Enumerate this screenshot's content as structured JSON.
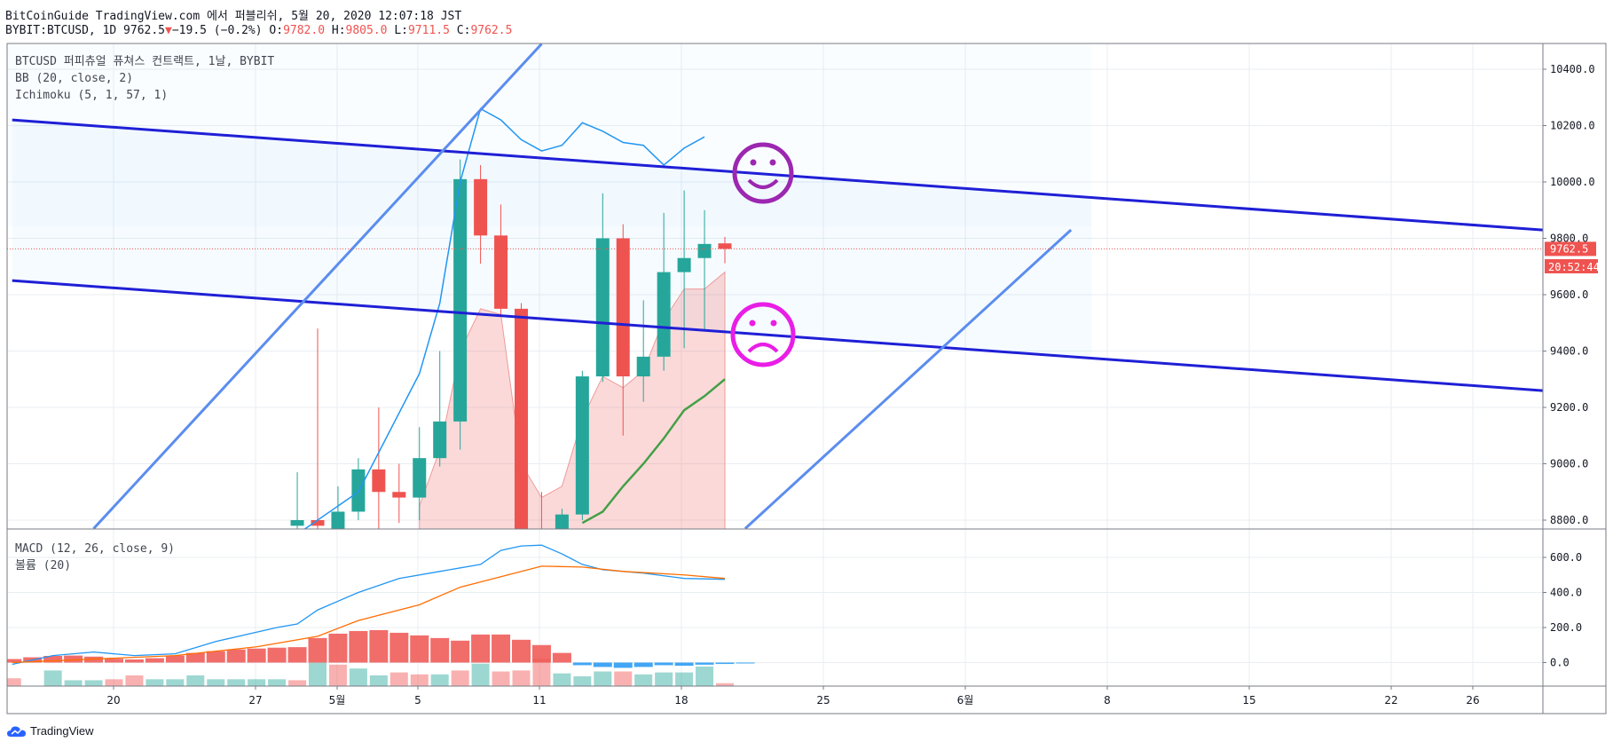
{
  "header": {
    "line1": "BitCoinGuide TradingView.com 에서 퍼블리쉬, 5월 20, 2020 12:07:18 JST",
    "symbol_prefix": "BYBIT:BTCUSD, 1D 9762.5",
    "change_arrow": "▼",
    "change": "−19.5 (−0.2%)",
    "o_label": "O:",
    "o_value": "9782.0",
    "h_label": "H:",
    "h_value": "9805.0",
    "l_label": "L:",
    "l_value": "9711.5",
    "c_label": "C:",
    "c_value": "9762.5"
  },
  "legend": {
    "main_title": "BTCUSD 퍼피츄얼 퓨쳐스 컨트랙트, 1날, BYBIT",
    "bb": "BB (20, close, 2)",
    "ichimoku": "Ichimoku (5, 1, 57, 1)",
    "macd": "MACD (12, 26, close, 9)",
    "volume": "볼륨 (20)"
  },
  "price_badge": "9762.5",
  "countdown_badge": "20:52:44",
  "footer_brand": "TradingView",
  "colors": {
    "up": "#26a69a",
    "down": "#ef5350",
    "channel": "#1f1fd6",
    "trend": "#5b8def",
    "bb": "#2196f3",
    "ichimoku": "#43a047",
    "macd": "#2196f3",
    "signal": "#ff6d00",
    "smile": "#9c27b0",
    "sad": "#e91ee6"
  },
  "chart_data": [
    {
      "type": "candlestick",
      "title": "BTCUSD 퍼피츄얼 퓨쳐스 컨트랙트, 1날, BYBIT",
      "x_ticks": [
        "20",
        "27",
        "5월",
        "5",
        "11",
        "18",
        "25",
        "6월",
        "8",
        "15",
        "22",
        "26"
      ],
      "y_ticks": [
        "10400.0",
        "10200.0",
        "10000.0",
        "9800.0",
        "9600.0",
        "9400.0",
        "9200.0",
        "9000.0",
        "8800.0"
      ],
      "ylim": [
        8770,
        10480
      ],
      "candles": [
        {
          "date": "2020-04-29",
          "o": 8780,
          "h": 8970,
          "l": 8760,
          "c": 8800
        },
        {
          "date": "2020-04-30",
          "o": 8800,
          "h": 9480,
          "l": 8760,
          "c": 8780
        },
        {
          "date": "2020-05-01",
          "o": 8770,
          "h": 8920,
          "l": 8760,
          "c": 8830
        },
        {
          "date": "2020-05-02",
          "o": 8830,
          "h": 9020,
          "l": 8800,
          "c": 8980
        },
        {
          "date": "2020-05-03",
          "o": 8980,
          "h": 9200,
          "l": 8770,
          "c": 8900
        },
        {
          "date": "2020-05-04",
          "o": 8900,
          "h": 9000,
          "l": 8790,
          "c": 8880
        },
        {
          "date": "2020-05-05",
          "o": 8880,
          "h": 9130,
          "l": 8800,
          "c": 9020
        },
        {
          "date": "2020-05-06",
          "o": 9020,
          "h": 9400,
          "l": 8990,
          "c": 9150
        },
        {
          "date": "2020-05-07",
          "o": 9150,
          "h": 10080,
          "l": 9050,
          "c": 10010
        },
        {
          "date": "2020-05-08",
          "o": 10010,
          "h": 10060,
          "l": 9710,
          "c": 9810
        },
        {
          "date": "2020-05-09",
          "o": 9810,
          "h": 9920,
          "l": 9530,
          "c": 9550
        },
        {
          "date": "2020-05-10",
          "o": 9550,
          "h": 9570,
          "l": 8700,
          "c": 8770
        },
        {
          "date": "2020-05-11",
          "o": 8770,
          "h": 8900,
          "l": 8700,
          "c": 8740
        },
        {
          "date": "2020-05-12",
          "o": 8760,
          "h": 8840,
          "l": 8740,
          "c": 8820
        },
        {
          "date": "2020-05-13",
          "o": 8820,
          "h": 9330,
          "l": 8800,
          "c": 9310
        },
        {
          "date": "2020-05-14",
          "o": 9310,
          "h": 9960,
          "l": 9290,
          "c": 9800
        },
        {
          "date": "2020-05-15",
          "o": 9800,
          "h": 9850,
          "l": 9100,
          "c": 9310
        },
        {
          "date": "2020-05-16",
          "o": 9310,
          "h": 9580,
          "l": 9220,
          "c": 9380
        },
        {
          "date": "2020-05-17",
          "o": 9380,
          "h": 9890,
          "l": 9330,
          "c": 9680
        },
        {
          "date": "2020-05-18",
          "o": 9680,
          "h": 9970,
          "l": 9410,
          "c": 9730
        },
        {
          "date": "2020-05-19",
          "o": 9730,
          "h": 9900,
          "l": 9470,
          "c": 9780
        },
        {
          "date": "2020-05-20",
          "o": 9782,
          "h": 9805,
          "l": 9711.5,
          "c": 9762.5
        }
      ],
      "bb_upper": [
        {
          "date": "2020-05-05",
          "v": 9320
        },
        {
          "date": "2020-05-06",
          "v": 9570
        },
        {
          "date": "2020-05-07",
          "v": 10000
        },
        {
          "date": "2020-05-08",
          "v": 10260
        },
        {
          "date": "2020-05-09",
          "v": 10220
        },
        {
          "date": "2020-05-10",
          "v": 10150
        },
        {
          "date": "2020-05-11",
          "v": 10110
        },
        {
          "date": "2020-05-12",
          "v": 10130
        },
        {
          "date": "2020-05-13",
          "v": 10210
        },
        {
          "date": "2020-05-14",
          "v": 10180
        },
        {
          "date": "2020-05-15",
          "v": 10140
        },
        {
          "date": "2020-05-16",
          "v": 10130
        },
        {
          "date": "2020-05-17",
          "v": 10060
        },
        {
          "date": "2020-05-18",
          "v": 10120
        },
        {
          "date": "2020-05-19",
          "v": 10160
        }
      ],
      "cloud_top": [
        {
          "date": "2020-05-05",
          "v": 8850
        },
        {
          "date": "2020-05-06",
          "v": 9050
        },
        {
          "date": "2020-05-07",
          "v": 9400
        },
        {
          "date": "2020-05-08",
          "v": 9550
        },
        {
          "date": "2020-05-09",
          "v": 9530
        },
        {
          "date": "2020-05-10",
          "v": 9000
        },
        {
          "date": "2020-05-11",
          "v": 8880
        },
        {
          "date": "2020-05-12",
          "v": 8920
        },
        {
          "date": "2020-05-13",
          "v": 9160
        },
        {
          "date": "2020-05-14",
          "v": 9310
        },
        {
          "date": "2020-05-15",
          "v": 9270
        },
        {
          "date": "2020-05-16",
          "v": 9330
        },
        {
          "date": "2020-05-17",
          "v": 9510
        },
        {
          "date": "2020-05-18",
          "v": 9620
        },
        {
          "date": "2020-05-19",
          "v": 9620
        },
        {
          "date": "2020-05-20",
          "v": 9680
        }
      ],
      "ichimoku_line": [
        {
          "date": "2020-05-13",
          "v": 8790
        },
        {
          "date": "2020-05-14",
          "v": 8830
        },
        {
          "date": "2020-05-15",
          "v": 8920
        },
        {
          "date": "2020-05-16",
          "v": 9000
        },
        {
          "date": "2020-05-17",
          "v": 9090
        },
        {
          "date": "2020-05-18",
          "v": 9190
        },
        {
          "date": "2020-05-19",
          "v": 9240
        },
        {
          "date": "2020-05-20",
          "v": 9300
        }
      ],
      "channel_upper": [
        {
          "date": "2020-04-15",
          "v": 10220
        },
        {
          "date": "2020-07-01",
          "v": 9820
        }
      ],
      "channel_lower": [
        {
          "date": "2020-04-15",
          "v": 9650
        },
        {
          "date": "2020-07-01",
          "v": 9250
        }
      ],
      "trend_left": [
        {
          "date": "2020-04-19",
          "v": 8770
        },
        {
          "date": "2020-05-11",
          "v": 10490
        }
      ],
      "trend_right": [
        {
          "date": "2020-05-21",
          "v": 8770
        },
        {
          "date": "2020-06-06",
          "v": 9830
        }
      ],
      "last_price": 9762.5
    },
    {
      "type": "line",
      "title": "MACD (12, 26, close, 9)",
      "y_ticks": [
        "600.0",
        "400.0",
        "200.0",
        "0.0"
      ],
      "ylim": [
        -130,
        690
      ],
      "macd": [
        {
          "date": "2020-04-15",
          "v": -10
        },
        {
          "date": "2020-04-17",
          "v": 40
        },
        {
          "date": "2020-04-19",
          "v": 60
        },
        {
          "date": "2020-04-21",
          "v": 40
        },
        {
          "date": "2020-04-23",
          "v": 50
        },
        {
          "date": "2020-04-25",
          "v": 120
        },
        {
          "date": "2020-04-28",
          "v": 200
        },
        {
          "date": "2020-04-29",
          "v": 220
        },
        {
          "date": "2020-04-30",
          "v": 300
        },
        {
          "date": "2020-05-02",
          "v": 400
        },
        {
          "date": "2020-05-04",
          "v": 480
        },
        {
          "date": "2020-05-06",
          "v": 520
        },
        {
          "date": "2020-05-08",
          "v": 560
        },
        {
          "date": "2020-05-09",
          "v": 640
        },
        {
          "date": "2020-05-10",
          "v": 665
        },
        {
          "date": "2020-05-11",
          "v": 670
        },
        {
          "date": "2020-05-12",
          "v": 620
        },
        {
          "date": "2020-05-13",
          "v": 560
        },
        {
          "date": "2020-05-14",
          "v": 530
        },
        {
          "date": "2020-05-16",
          "v": 510
        },
        {
          "date": "2020-05-18",
          "v": 480
        },
        {
          "date": "2020-05-20",
          "v": 475
        }
      ],
      "signal": [
        {
          "date": "2020-04-15",
          "v": 0
        },
        {
          "date": "2020-04-19",
          "v": 20
        },
        {
          "date": "2020-04-23",
          "v": 40
        },
        {
          "date": "2020-04-27",
          "v": 90
        },
        {
          "date": "2020-04-30",
          "v": 150
        },
        {
          "date": "2020-05-02",
          "v": 240
        },
        {
          "date": "2020-05-05",
          "v": 330
        },
        {
          "date": "2020-05-07",
          "v": 430
        },
        {
          "date": "2020-05-09",
          "v": 490
        },
        {
          "date": "2020-05-11",
          "v": 550
        },
        {
          "date": "2020-05-13",
          "v": 545
        },
        {
          "date": "2020-05-15",
          "v": 520
        },
        {
          "date": "2020-05-18",
          "v": 500
        },
        {
          "date": "2020-05-20",
          "v": 480
        }
      ],
      "histogram": [
        {
          "date": "2020-04-15",
          "v": 20
        },
        {
          "date": "2020-04-16",
          "v": 30
        },
        {
          "date": "2020-04-17",
          "v": 38
        },
        {
          "date": "2020-04-18",
          "v": 40
        },
        {
          "date": "2020-04-19",
          "v": 34
        },
        {
          "date": "2020-04-20",
          "v": 22
        },
        {
          "date": "2020-04-21",
          "v": 18
        },
        {
          "date": "2020-04-22",
          "v": 25
        },
        {
          "date": "2020-04-23",
          "v": 40
        },
        {
          "date": "2020-04-24",
          "v": 55
        },
        {
          "date": "2020-04-25",
          "v": 65
        },
        {
          "date": "2020-04-26",
          "v": 75
        },
        {
          "date": "2020-04-27",
          "v": 80
        },
        {
          "date": "2020-04-28",
          "v": 85
        },
        {
          "date": "2020-04-29",
          "v": 88
        },
        {
          "date": "2020-04-30",
          "v": 140
        },
        {
          "date": "2020-05-01",
          "v": 165
        },
        {
          "date": "2020-05-02",
          "v": 180
        },
        {
          "date": "2020-05-03",
          "v": 185
        },
        {
          "date": "2020-05-04",
          "v": 170
        },
        {
          "date": "2020-05-05",
          "v": 155
        },
        {
          "date": "2020-05-06",
          "v": 140
        },
        {
          "date": "2020-05-07",
          "v": 125
        },
        {
          "date": "2020-05-08",
          "v": 160
        },
        {
          "date": "2020-05-09",
          "v": 160
        },
        {
          "date": "2020-05-10",
          "v": 130
        },
        {
          "date": "2020-05-11",
          "v": 100
        },
        {
          "date": "2020-05-12",
          "v": 55
        },
        {
          "date": "2020-05-13",
          "v": -15
        },
        {
          "date": "2020-05-14",
          "v": -25
        },
        {
          "date": "2020-05-15",
          "v": -30
        },
        {
          "date": "2020-05-16",
          "v": -25
        },
        {
          "date": "2020-05-17",
          "v": -15
        },
        {
          "date": "2020-05-18",
          "v": -18
        },
        {
          "date": "2020-05-19",
          "v": -12
        },
        {
          "date": "2020-05-20",
          "v": -8
        },
        {
          "date": "2020-05-21",
          "v": -5
        }
      ],
      "volume": [
        {
          "date": "2020-04-15",
          "v": 0.4,
          "up": false
        },
        {
          "date": "2020-04-17",
          "v": 0.8,
          "up": true
        },
        {
          "date": "2020-04-18",
          "v": 0.3,
          "up": true
        },
        {
          "date": "2020-04-19",
          "v": 0.3,
          "up": true
        },
        {
          "date": "2020-04-20",
          "v": 0.35,
          "up": false
        },
        {
          "date": "2020-04-21",
          "v": 0.55,
          "up": false
        },
        {
          "date": "2020-04-22",
          "v": 0.35,
          "up": true
        },
        {
          "date": "2020-04-23",
          "v": 0.35,
          "up": true
        },
        {
          "date": "2020-04-24",
          "v": 0.55,
          "up": true
        },
        {
          "date": "2020-04-25",
          "v": 0.35,
          "up": true
        },
        {
          "date": "2020-04-26",
          "v": 0.35,
          "up": true
        },
        {
          "date": "2020-04-27",
          "v": 0.35,
          "up": true
        },
        {
          "date": "2020-04-28",
          "v": 0.35,
          "up": true
        },
        {
          "date": "2020-04-29",
          "v": 0.3,
          "up": false
        },
        {
          "date": "2020-04-30",
          "v": 1.2,
          "up": true
        },
        {
          "date": "2020-05-01",
          "v": 1.1,
          "up": false
        },
        {
          "date": "2020-05-02",
          "v": 0.9,
          "up": true
        },
        {
          "date": "2020-05-03",
          "v": 0.55,
          "up": true
        },
        {
          "date": "2020-05-04",
          "v": 0.7,
          "up": false
        },
        {
          "date": "2020-05-05",
          "v": 0.6,
          "up": false
        },
        {
          "date": "2020-05-06",
          "v": 0.6,
          "up": true
        },
        {
          "date": "2020-05-07",
          "v": 0.8,
          "up": false
        },
        {
          "date": "2020-05-08",
          "v": 1.15,
          "up": true
        },
        {
          "date": "2020-05-09",
          "v": 0.75,
          "up": false
        },
        {
          "date": "2020-05-10",
          "v": 0.8,
          "up": false
        },
        {
          "date": "2020-05-11",
          "v": 1.4,
          "up": false
        },
        {
          "date": "2020-05-12",
          "v": 0.65,
          "up": true
        },
        {
          "date": "2020-05-13",
          "v": 0.5,
          "up": true
        },
        {
          "date": "2020-05-14",
          "v": 0.75,
          "up": true
        },
        {
          "date": "2020-05-15",
          "v": 0.75,
          "up": false
        },
        {
          "date": "2020-05-16",
          "v": 0.6,
          "up": true
        },
        {
          "date": "2020-05-17",
          "v": 0.7,
          "up": true
        },
        {
          "date": "2020-05-18",
          "v": 0.7,
          "up": true
        },
        {
          "date": "2020-05-19",
          "v": 1.0,
          "up": true
        },
        {
          "date": "2020-05-20",
          "v": 0.15,
          "up": false
        }
      ]
    }
  ]
}
